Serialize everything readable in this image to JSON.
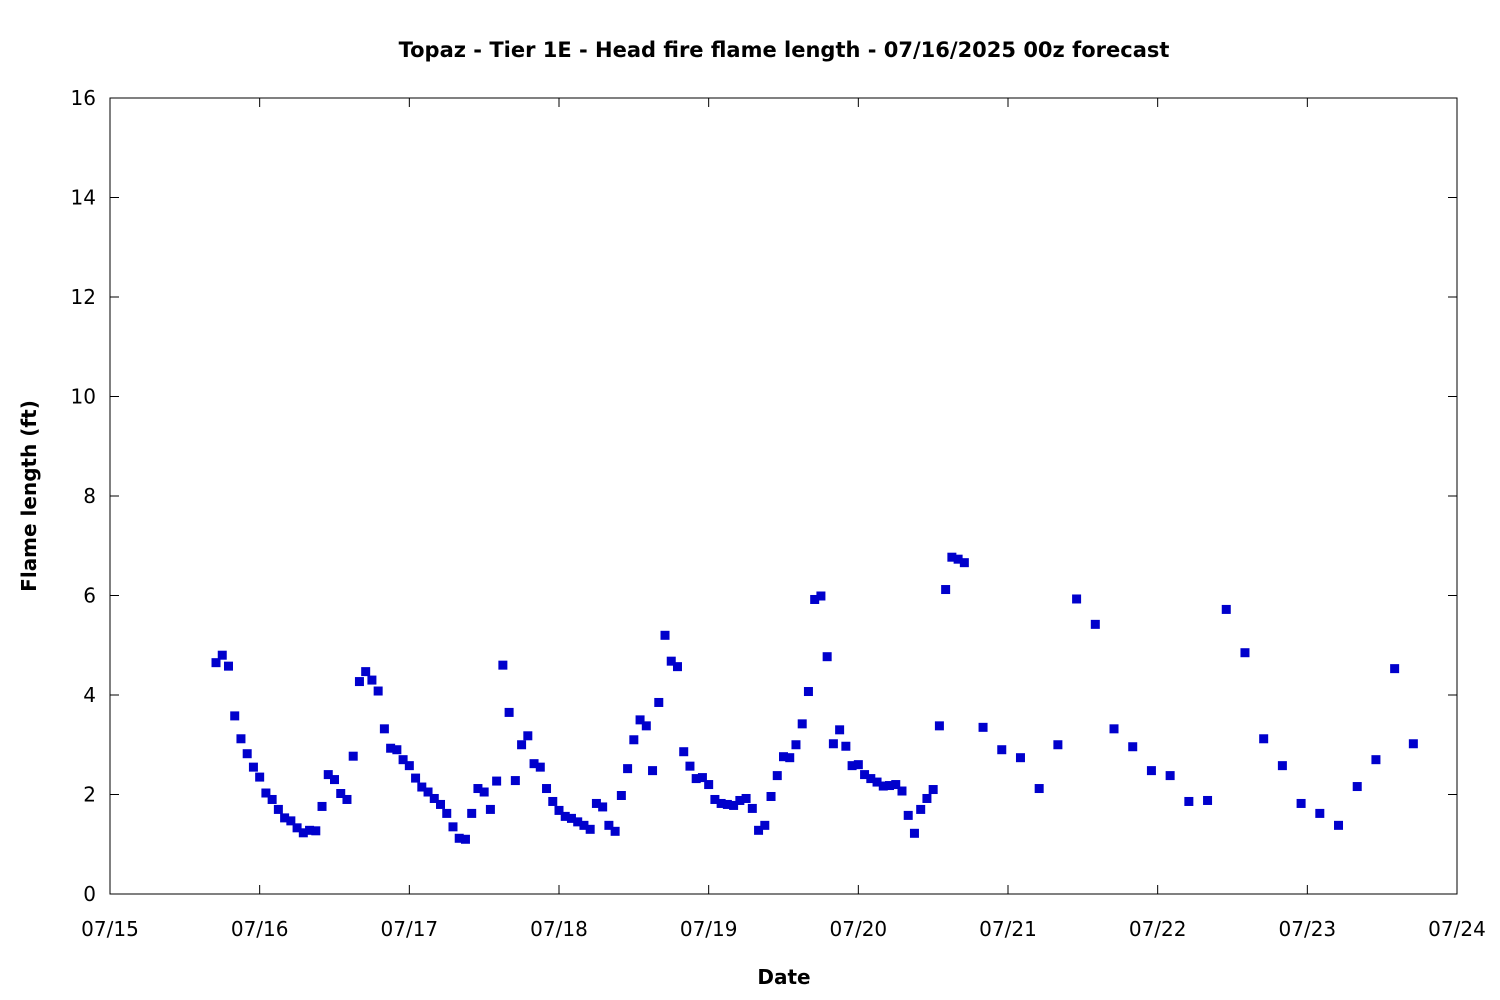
{
  "chart_data": {
    "type": "scatter",
    "title": "Topaz - Tier 1E - Head fire flame length - 07/16/2025 00z forecast",
    "xlabel": "Date",
    "ylabel": "Flame length (ft)",
    "x_ticks": [
      "07/15",
      "07/16",
      "07/17",
      "07/18",
      "07/19",
      "07/20",
      "07/21",
      "07/22",
      "07/23",
      "07/24"
    ],
    "y_ticks": [
      "0",
      "2",
      "4",
      "6",
      "8",
      "10",
      "12",
      "14",
      "16"
    ],
    "xlim": [
      "07/15 00:00",
      "07/24 00:00"
    ],
    "ylim": [
      0,
      16
    ],
    "grid": false,
    "marker_color": "#0000cc",
    "series": [
      {
        "points": [
          [
            "07/15 17:00",
            4.65
          ],
          [
            "07/15 18:00",
            4.8
          ],
          [
            "07/15 19:00",
            4.58
          ],
          [
            "07/15 20:00",
            3.58
          ],
          [
            "07/15 21:00",
            3.12
          ],
          [
            "07/15 22:00",
            2.82
          ],
          [
            "07/15 23:00",
            2.55
          ],
          [
            "07/16 00:00",
            2.35
          ],
          [
            "07/16 01:00",
            2.03
          ],
          [
            "07/16 02:00",
            1.9
          ],
          [
            "07/16 03:00",
            1.7
          ],
          [
            "07/16 04:00",
            1.53
          ],
          [
            "07/16 05:00",
            1.47
          ],
          [
            "07/16 06:00",
            1.33
          ],
          [
            "07/16 07:00",
            1.23
          ],
          [
            "07/16 08:00",
            1.28
          ],
          [
            "07/16 09:00",
            1.27
          ],
          [
            "07/16 10:00",
            1.76
          ],
          [
            "07/16 11:00",
            2.4
          ],
          [
            "07/16 12:00",
            2.3
          ],
          [
            "07/16 13:00",
            2.02
          ],
          [
            "07/16 14:00",
            1.9
          ],
          [
            "07/16 15:00",
            2.77
          ],
          [
            "07/16 16:00",
            4.27
          ],
          [
            "07/16 17:00",
            4.47
          ],
          [
            "07/16 18:00",
            4.3
          ],
          [
            "07/16 19:00",
            4.08
          ],
          [
            "07/16 20:00",
            3.32
          ],
          [
            "07/16 21:00",
            2.93
          ],
          [
            "07/16 22:00",
            2.9
          ],
          [
            "07/16 23:00",
            2.7
          ],
          [
            "07/17 00:00",
            2.58
          ],
          [
            "07/17 01:00",
            2.33
          ],
          [
            "07/17 02:00",
            2.15
          ],
          [
            "07/17 03:00",
            2.05
          ],
          [
            "07/17 04:00",
            1.92
          ],
          [
            "07/17 05:00",
            1.8
          ],
          [
            "07/17 06:00",
            1.62
          ],
          [
            "07/17 07:00",
            1.35
          ],
          [
            "07/17 08:00",
            1.12
          ],
          [
            "07/17 09:00",
            1.1
          ],
          [
            "07/17 10:00",
            1.62
          ],
          [
            "07/17 11:00",
            2.12
          ],
          [
            "07/17 12:00",
            2.05
          ],
          [
            "07/17 13:00",
            1.7
          ],
          [
            "07/17 14:00",
            2.27
          ],
          [
            "07/17 15:00",
            4.6
          ],
          [
            "07/17 16:00",
            3.65
          ],
          [
            "07/17 17:00",
            2.28
          ],
          [
            "07/17 18:00",
            3.0
          ],
          [
            "07/17 19:00",
            3.18
          ],
          [
            "07/17 20:00",
            2.62
          ],
          [
            "07/17 21:00",
            2.55
          ],
          [
            "07/17 22:00",
            2.12
          ],
          [
            "07/17 23:00",
            1.86
          ],
          [
            "07/18 00:00",
            1.68
          ],
          [
            "07/18 01:00",
            1.56
          ],
          [
            "07/18 02:00",
            1.52
          ],
          [
            "07/18 03:00",
            1.45
          ],
          [
            "07/18 04:00",
            1.38
          ],
          [
            "07/18 05:00",
            1.3
          ],
          [
            "07/18 06:00",
            1.82
          ],
          [
            "07/18 07:00",
            1.75
          ],
          [
            "07/18 08:00",
            1.38
          ],
          [
            "07/18 09:00",
            1.26
          ],
          [
            "07/18 10:00",
            1.98
          ],
          [
            "07/18 11:00",
            2.52
          ],
          [
            "07/18 12:00",
            3.1
          ],
          [
            "07/18 13:00",
            3.5
          ],
          [
            "07/18 14:00",
            3.38
          ],
          [
            "07/18 15:00",
            2.48
          ],
          [
            "07/18 16:00",
            3.85
          ],
          [
            "07/18 17:00",
            5.2
          ],
          [
            "07/18 18:00",
            4.68
          ],
          [
            "07/18 19:00",
            4.57
          ],
          [
            "07/18 20:00",
            2.86
          ],
          [
            "07/18 21:00",
            2.57
          ],
          [
            "07/18 22:00",
            2.32
          ],
          [
            "07/18 23:00",
            2.34
          ],
          [
            "07/19 00:00",
            2.2
          ],
          [
            "07/19 01:00",
            1.9
          ],
          [
            "07/19 02:00",
            1.82
          ],
          [
            "07/19 03:00",
            1.8
          ],
          [
            "07/19 04:00",
            1.78
          ],
          [
            "07/19 05:00",
            1.88
          ],
          [
            "07/19 06:00",
            1.92
          ],
          [
            "07/19 07:00",
            1.72
          ],
          [
            "07/19 08:00",
            1.28
          ],
          [
            "07/19 09:00",
            1.38
          ],
          [
            "07/19 10:00",
            1.96
          ],
          [
            "07/19 11:00",
            2.38
          ],
          [
            "07/19 12:00",
            2.76
          ],
          [
            "07/19 13:00",
            2.74
          ],
          [
            "07/19 14:00",
            3.0
          ],
          [
            "07/19 15:00",
            3.42
          ],
          [
            "07/19 16:00",
            4.07
          ],
          [
            "07/19 17:00",
            5.92
          ],
          [
            "07/19 18:00",
            5.99
          ],
          [
            "07/19 19:00",
            4.77
          ],
          [
            "07/19 20:00",
            3.02
          ],
          [
            "07/19 21:00",
            3.3
          ],
          [
            "07/19 22:00",
            2.97
          ],
          [
            "07/19 23:00",
            2.58
          ],
          [
            "07/20 00:00",
            2.6
          ],
          [
            "07/20 01:00",
            2.4
          ],
          [
            "07/20 02:00",
            2.32
          ],
          [
            "07/20 03:00",
            2.25
          ],
          [
            "07/20 04:00",
            2.17
          ],
          [
            "07/20 05:00",
            2.18
          ],
          [
            "07/20 06:00",
            2.2
          ],
          [
            "07/20 07:00",
            2.07
          ],
          [
            "07/20 08:00",
            1.58
          ],
          [
            "07/20 09:00",
            1.22
          ],
          [
            "07/20 10:00",
            1.7
          ],
          [
            "07/20 11:00",
            1.92
          ],
          [
            "07/20 12:00",
            2.1
          ],
          [
            "07/20 13:00",
            3.38
          ],
          [
            "07/20 14:00",
            6.12
          ],
          [
            "07/20 15:00",
            6.77
          ],
          [
            "07/20 16:00",
            6.73
          ],
          [
            "07/20 17:00",
            6.66
          ],
          [
            "07/20 20:00",
            3.35
          ],
          [
            "07/20 23:00",
            2.9
          ],
          [
            "07/21 02:00",
            2.74
          ],
          [
            "07/21 05:00",
            2.12
          ],
          [
            "07/21 08:00",
            3.0
          ],
          [
            "07/21 11:00",
            5.93
          ],
          [
            "07/21 14:00",
            5.42
          ],
          [
            "07/21 17:00",
            3.32
          ],
          [
            "07/21 20:00",
            2.96
          ],
          [
            "07/21 23:00",
            2.48
          ],
          [
            "07/22 02:00",
            2.38
          ],
          [
            "07/22 05:00",
            1.86
          ],
          [
            "07/22 08:00",
            1.88
          ],
          [
            "07/22 11:00",
            5.72
          ],
          [
            "07/22 14:00",
            4.85
          ],
          [
            "07/22 17:00",
            3.12
          ],
          [
            "07/22 20:00",
            2.58
          ],
          [
            "07/22 23:00",
            1.82
          ],
          [
            "07/23 02:00",
            1.62
          ],
          [
            "07/23 05:00",
            1.38
          ],
          [
            "07/23 08:00",
            2.16
          ],
          [
            "07/23 11:00",
            2.7
          ],
          [
            "07/23 14:00",
            4.53
          ],
          [
            "07/23 17:00",
            3.02
          ]
        ]
      }
    ]
  }
}
